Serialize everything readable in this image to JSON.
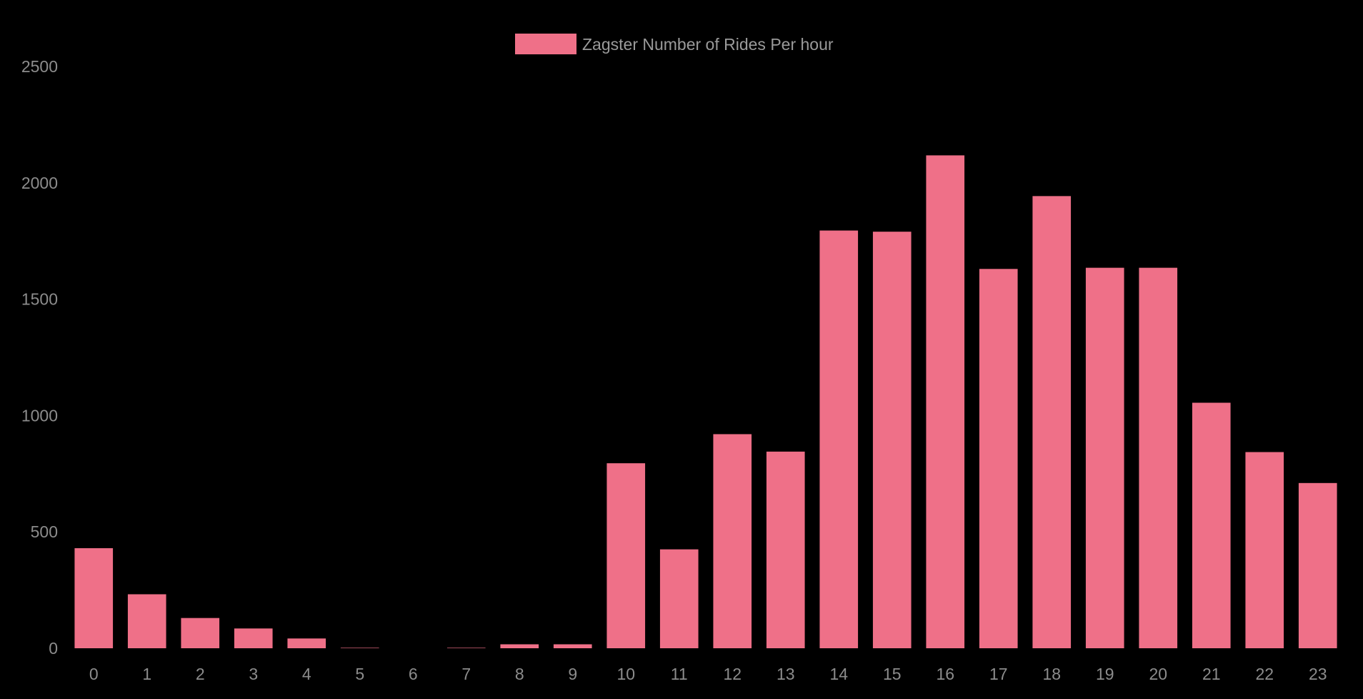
{
  "colors": {
    "background": "#000000",
    "bar_fill": "#ef7088",
    "text": "#8c8c8c"
  },
  "chart_data": {
    "type": "bar",
    "title": "",
    "xlabel": "",
    "ylabel": "",
    "legend": {
      "position": "top-center",
      "label": "Zagster Number of Rides Per hour"
    },
    "grid": false,
    "ylim": [
      0,
      2500
    ],
    "y_ticks": [
      "0",
      "500",
      "1000",
      "1500",
      "2000",
      "2500"
    ],
    "categories": [
      "0",
      "1",
      "2",
      "3",
      "4",
      "5",
      "6",
      "7",
      "8",
      "9",
      "10",
      "11",
      "12",
      "13",
      "14",
      "15",
      "16",
      "17",
      "18",
      "19",
      "20",
      "21",
      "22",
      "23"
    ],
    "series": [
      {
        "name": "Zagster Number of Rides Per hour",
        "values": [
          430,
          232,
          130,
          85,
          42,
          2,
          0,
          2,
          17,
          17,
          795,
          425,
          920,
          845,
          1795,
          1790,
          2118,
          1630,
          1943,
          1635,
          1635,
          1055,
          843,
          710
        ]
      }
    ]
  }
}
